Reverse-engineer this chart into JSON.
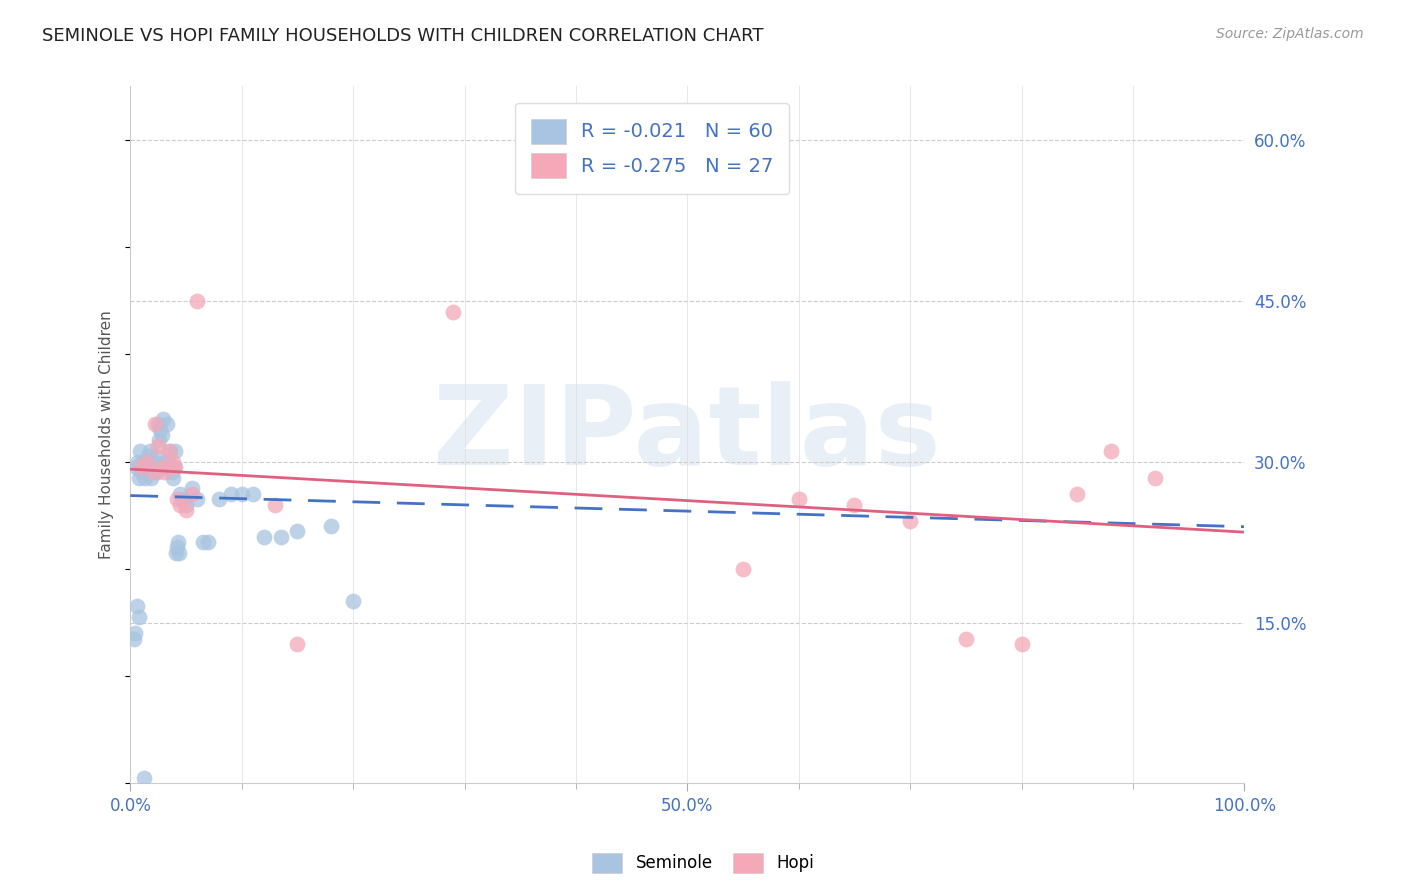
{
  "title": "SEMINOLE VS HOPI FAMILY HOUSEHOLDS WITH CHILDREN CORRELATION CHART",
  "source": "Source: ZipAtlas.com",
  "ylabel": "Family Households with Children",
  "watermark": "ZIPatlas",
  "xlim": [
    0.0,
    1.0
  ],
  "ylim": [
    0.0,
    0.65
  ],
  "yticks": [
    0.15,
    0.3,
    0.45,
    0.6
  ],
  "seminole_R": -0.021,
  "seminole_N": 60,
  "hopi_R": -0.275,
  "hopi_N": 27,
  "seminole_color": "#a8c4e0",
  "hopi_color": "#f4a8b8",
  "seminole_line_color": "#4472C4",
  "hopi_line_color": "#E06080",
  "tick_label_color": "#4472C4",
  "legend_R_color": "#4472C4",
  "legend_text_seminole": "R = -0.021   N = 60",
  "legend_text_hopi": "R = -0.275   N = 27",
  "seminole_x": [
    0.005,
    0.007,
    0.008,
    0.009,
    0.01,
    0.011,
    0.012,
    0.013,
    0.014,
    0.015,
    0.016,
    0.017,
    0.018,
    0.019,
    0.02,
    0.021,
    0.022,
    0.023,
    0.024,
    0.025,
    0.026,
    0.027,
    0.028,
    0.029,
    0.03,
    0.031,
    0.032,
    0.033,
    0.034,
    0.035,
    0.036,
    0.037,
    0.038,
    0.039,
    0.04,
    0.041,
    0.042,
    0.043,
    0.044,
    0.045,
    0.047,
    0.05,
    0.055,
    0.06,
    0.065,
    0.07,
    0.08,
    0.09,
    0.1,
    0.11,
    0.12,
    0.135,
    0.15,
    0.18,
    0.2,
    0.003,
    0.004,
    0.006,
    0.008,
    0.012
  ],
  "seminole_y": [
    0.295,
    0.3,
    0.285,
    0.31,
    0.29,
    0.3,
    0.295,
    0.285,
    0.29,
    0.295,
    0.305,
    0.3,
    0.31,
    0.285,
    0.295,
    0.3,
    0.295,
    0.305,
    0.29,
    0.335,
    0.32,
    0.33,
    0.325,
    0.34,
    0.295,
    0.3,
    0.295,
    0.335,
    0.3,
    0.295,
    0.31,
    0.29,
    0.285,
    0.295,
    0.31,
    0.215,
    0.22,
    0.225,
    0.215,
    0.27,
    0.265,
    0.26,
    0.275,
    0.265,
    0.225,
    0.225,
    0.265,
    0.27,
    0.27,
    0.27,
    0.23,
    0.23,
    0.235,
    0.24,
    0.17,
    0.135,
    0.14,
    0.165,
    0.155,
    0.005
  ],
  "hopi_x": [
    0.01,
    0.015,
    0.02,
    0.022,
    0.025,
    0.028,
    0.03,
    0.035,
    0.038,
    0.04,
    0.042,
    0.045,
    0.05,
    0.055,
    0.06,
    0.13,
    0.15,
    0.29,
    0.55,
    0.6,
    0.65,
    0.7,
    0.75,
    0.8,
    0.85,
    0.88,
    0.92
  ],
  "hopi_y": [
    0.295,
    0.3,
    0.29,
    0.335,
    0.315,
    0.295,
    0.29,
    0.31,
    0.3,
    0.295,
    0.265,
    0.26,
    0.255,
    0.27,
    0.45,
    0.26,
    0.13,
    0.44,
    0.2,
    0.265,
    0.26,
    0.245,
    0.135,
    0.13,
    0.27,
    0.31,
    0.285
  ]
}
